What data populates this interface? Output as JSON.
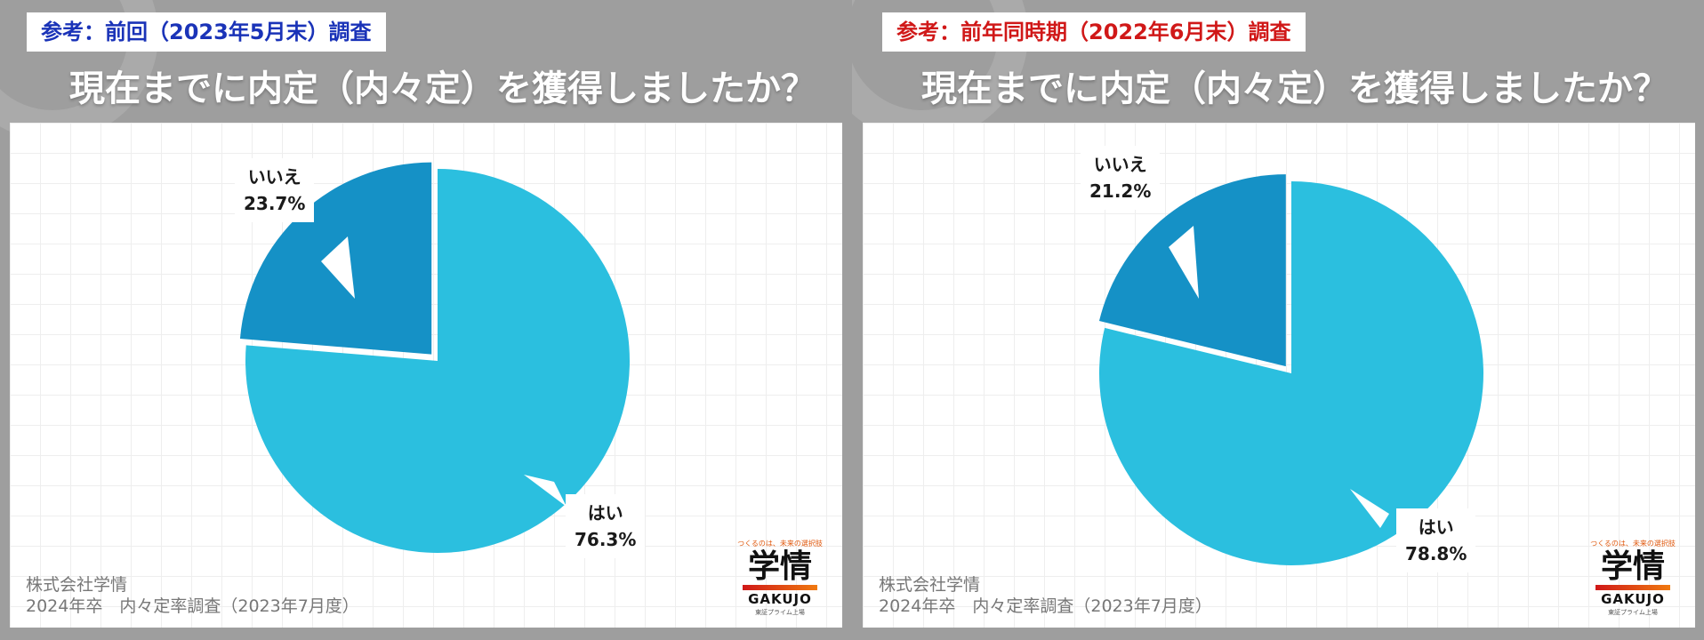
{
  "panels": [
    {
      "tag": "参考：前回（2023年5月末）調査",
      "tag_color": "#1a33b8",
      "question": "現在までに内定（内々定）を獲得しましたか？",
      "source_line1": "株式会社学情",
      "source_line2": "2024年卒　内々定率調査（2023年7月度）"
    },
    {
      "tag": "参考：前年同時期（2022年6月末）調査",
      "tag_color": "#d01818",
      "question": "現在までに内定（内々定）を獲得しましたか？",
      "source_line1": "株式会社学情",
      "source_line2": "2024年卒　内々定率調査（2023年7月度）"
    }
  ],
  "logo": {
    "slogan": "つくるのは、未来の選択肢",
    "kanji": "学情",
    "word": "GAKUJO",
    "small": "東証プライム上場"
  },
  "chart_data": [
    {
      "type": "pie",
      "categories": [
        "はい",
        "いいえ"
      ],
      "values": [
        76.3,
        23.7
      ],
      "value_labels": [
        "76.3%",
        "23.7%"
      ],
      "colors": [
        "#2bbfdf",
        "#1591c6"
      ]
    },
    {
      "type": "pie",
      "categories": [
        "はい",
        "いいえ"
      ],
      "values": [
        78.8,
        21.2
      ],
      "value_labels": [
        "78.8%",
        "21.2%"
      ],
      "colors": [
        "#2bbfdf",
        "#1591c6"
      ]
    }
  ]
}
